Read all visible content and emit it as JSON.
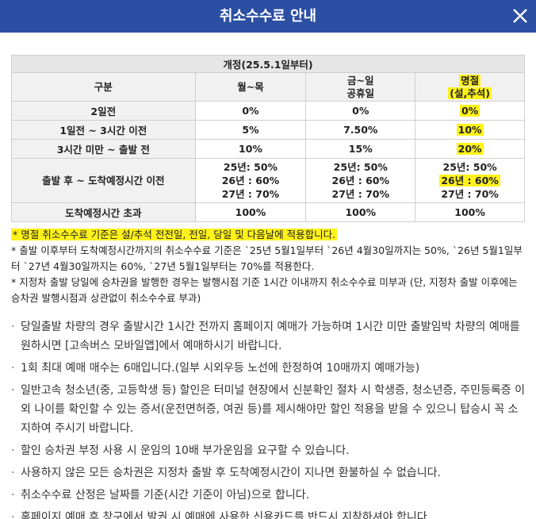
{
  "header": {
    "title": "취소수수료 안내",
    "close_icon": "close-icon"
  },
  "table": {
    "period": "개정(25.5.1일부터)",
    "columns": {
      "category": "구분",
      "weekday": "월~목",
      "weekend": "금~일\n공휴일",
      "holiday": "명절\n(설,추석)"
    },
    "rows": [
      {
        "label": "2일전",
        "weekday": "0%",
        "weekend": "0%",
        "holiday": "0%"
      },
      {
        "label": "1일전 ~ 3시간 이전",
        "weekday": "5%",
        "weekend": "7.50%",
        "holiday": "10%"
      },
      {
        "label": "3시간 미만 ~ 출발 전",
        "weekday": "10%",
        "weekend": "15%",
        "holiday": "20%"
      },
      {
        "label": "출발 후 ~ 도착예정시간 이전",
        "weekday": [
          "25년: 50%",
          "26년 : 60%",
          "27년 : 70%"
        ],
        "weekend": [
          "25년: 50%",
          "26년 : 60%",
          "27년 : 70%"
        ],
        "holiday": [
          "25년: 50%",
          "26년 : 60%",
          "27년 : 70%"
        ]
      },
      {
        "label": "도착예정시간 초과",
        "weekday": "100%",
        "weekend": "100%",
        "holiday": "100%"
      }
    ]
  },
  "notes": [
    "* 명절 취소수수료 기준은 설/추석 전전일, 전일, 당일 및 다음날에 적용합니다.",
    "* 출발 이후부터 도착예정시간까지의 취소수수료 기준은 `25년 5월1일부터 `26년 4월30일까지는 50%, `26년 5월1일부터 `27년 4월30일까지는 60%, `27년 5월1일부터는 70%를 적용한다.",
    "* 지정차 출발 당일에 승차권을 발행한 경우는 발행시점 기준 1시간 이내까지 취소수수료 미부과 (단, 지정차 출발 이후에는 승차권 발행시점과 상관없이 취소수수료 부과)"
  ],
  "list": [
    "당일출발 차량의 경우 출발시간 1시간 전까지 홈페이지 예매가 가능하며 1시간 미만 출발임박 차량의 예매를 원하시면 [고속버스 모바일앱]에서 예매하시기 바랍니다.",
    "1회 최대 예매 매수는 6매입니다.(일부 시외우등 노선에 한정하여 10매까지 예매가능)",
    "일반고속 청소년(중, 고등학생 등) 할인은 터미널 현장에서 신분확인 절차 시 학생증, 청소년증, 주민등록증 이외 나이를 확인할 수 있는 증서(운전면허증, 여권 등)를 제시해야만 할인 적용을 받을 수 있으니 탑승시 꼭 소지하여 주시기 바랍니다.",
    "할인 승차권 부정 사용 시 운임의 10배 부가운임을 요구할 수 있습니다.",
    "사용하지 않은 모든 승차권은 지정차 출발 후 도착예정시간이 지나면 환불하실 수 없습니다.",
    "취소수수료 산정은 날짜를 기준(시간 기준이 아님)으로 합니다.",
    "홈페이지 예매 후 창구에서 발권 시 예매에 사용한 신용카드를 반드시 지참하셔야 합니다."
  ],
  "colors": {
    "header": "#2b4fa3",
    "highlight": "#fff21a"
  }
}
